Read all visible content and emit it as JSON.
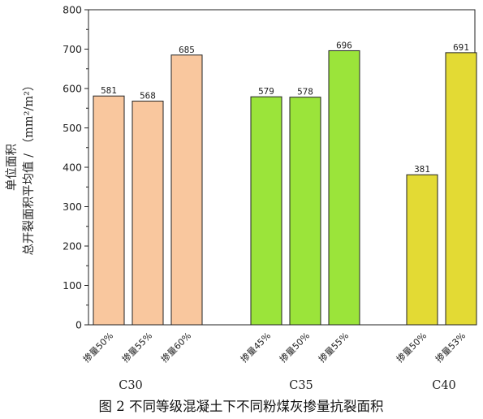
{
  "chart_data": {
    "type": "bar",
    "title": "图 2 不同等级混凝土下不同粉煤灰掺量抗裂面积",
    "ylabel_line1": "单位面积",
    "ylabel_line2": "总开裂面积平均值 / （mm²/m²）",
    "ylim": [
      0,
      800
    ],
    "yticks": [
      0,
      100,
      200,
      300,
      400,
      500,
      600,
      700,
      800
    ],
    "grid": false,
    "groups": [
      {
        "name": "C30",
        "color": "#F9C79E",
        "categories": [
          "掺量50%",
          "掺量55%",
          "掺量60%"
        ],
        "values": [
          581,
          568,
          685
        ]
      },
      {
        "name": "C35",
        "color": "#9BE43A",
        "categories": [
          "掺量45%",
          "掺量50%",
          "掺量55%"
        ],
        "values": [
          579,
          578,
          696
        ]
      },
      {
        "name": "C40",
        "color": "#E3DA34",
        "categories": [
          "掺量50%",
          "掺量53%"
        ],
        "values": [
          381,
          691
        ]
      }
    ]
  }
}
